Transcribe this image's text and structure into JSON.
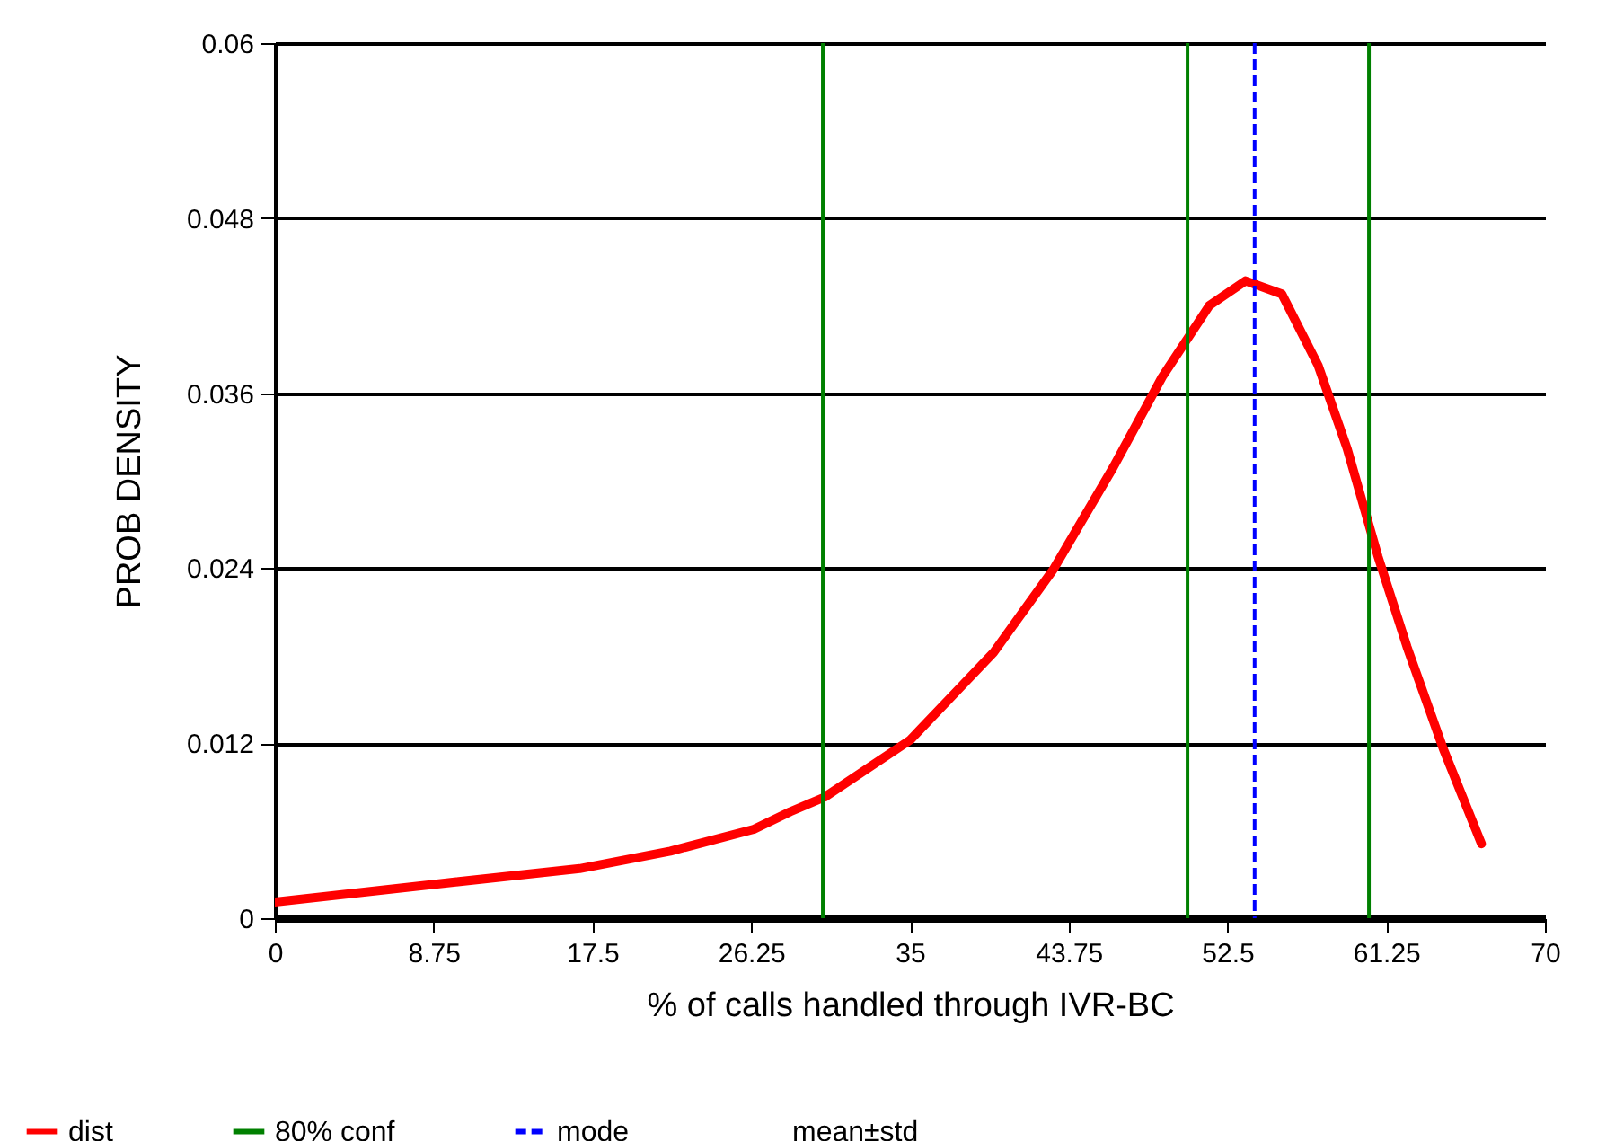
{
  "chart_data": {
    "type": "line",
    "xlabel": "% of calls handled through IVR-BC",
    "ylabel": "PROB DENSITY",
    "xlim": [
      0,
      70
    ],
    "xticks": [
      0,
      8.75,
      17.5,
      26.25,
      35,
      43.75,
      52.5,
      61.25,
      70
    ],
    "ylim": [
      0,
      0.06
    ],
    "yticks": [
      0,
      0.012,
      0.024,
      0.036,
      0.048,
      0.06
    ],
    "grid": "y",
    "legend": "bottom",
    "series": [
      {
        "name": "dist",
        "color": "#ff0000",
        "x": [
          0,
          8.6,
          16.8,
          21.8,
          26.4,
          28.4,
          30.3,
          35.0,
          39.6,
          42.9,
          46.2,
          48.9,
          51.5,
          53.5,
          55.5,
          57.5,
          59.1,
          60.8,
          62.4,
          64.4,
          66.5
        ],
        "values": [
          0.0011,
          0.0023,
          0.0034,
          0.0046,
          0.0061,
          0.0073,
          0.0083,
          0.0122,
          0.0182,
          0.0239,
          0.0309,
          0.0371,
          0.042,
          0.0437,
          0.0428,
          0.0379,
          0.0322,
          0.0248,
          0.0186,
          0.0116,
          0.0051
        ]
      }
    ],
    "ref_lines": [
      {
        "axis": "x",
        "value": 30.2,
        "label": "80% conf",
        "color": "#008000",
        "line_style": "solid"
      },
      {
        "axis": "x",
        "value": 50.3,
        "color": "#008000",
        "line_style": "solid"
      },
      {
        "axis": "x",
        "value": 60.3,
        "color": "#008000",
        "line_style": "solid"
      },
      {
        "axis": "x",
        "value": 54.0,
        "label": "mode",
        "color": "#0000ff",
        "line_style": "dashed"
      }
    ],
    "annotations": [
      "mean±std"
    ]
  }
}
